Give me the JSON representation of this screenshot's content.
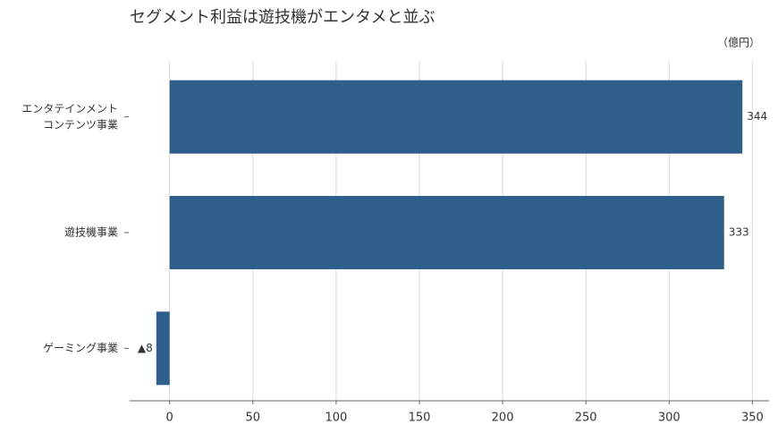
{
  "chart_data": {
    "type": "barh",
    "title": "セグメント利益は遊技機がエンタメと並ぶ",
    "unit_label": "（億円）",
    "categories": [
      "エンタテインメント\nコンテンツ事業",
      "遊技機事業",
      "ゲーミング事業"
    ],
    "values": [
      344,
      333,
      -8
    ],
    "value_labels": [
      "344",
      "333",
      "▲8"
    ],
    "color": "#2e5e8a",
    "xlim": [
      -24,
      360
    ],
    "xticks": [
      0,
      50,
      100,
      150,
      200,
      250,
      300,
      350
    ],
    "grid": true
  }
}
